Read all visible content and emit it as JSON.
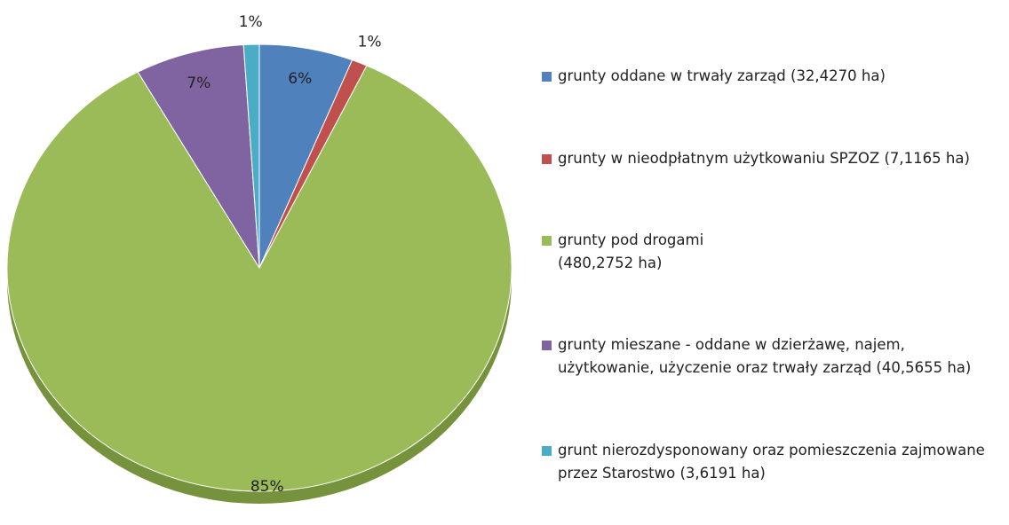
{
  "chart_data": {
    "type": "pie",
    "categories": [
      "grunty oddane w trwały zarząd (32,4270 ha)",
      "grunty w nieodpłatnym użytkowaniu SPZOZ (7,1165 ha)",
      "grunty pod drogami\n(480,2752 ha)",
      "grunty mieszane - oddane w dzierżawę, najem, użytkowanie, użyczenie oraz trwały zarząd (40,5655 ha)",
      "grunt nierozdysponowany oraz pomieszczenia zajmowane przez Starostwo (3,6191 ha)"
    ],
    "values": [
      6,
      1,
      85,
      7,
      1
    ],
    "value_labels": [
      "6%",
      "1%",
      "85%",
      "7%",
      "1%"
    ],
    "colors": [
      "#4f81bd",
      "#c0504d",
      "#9bbb59",
      "#8064a2",
      "#4bacc6"
    ],
    "legend": "right"
  }
}
